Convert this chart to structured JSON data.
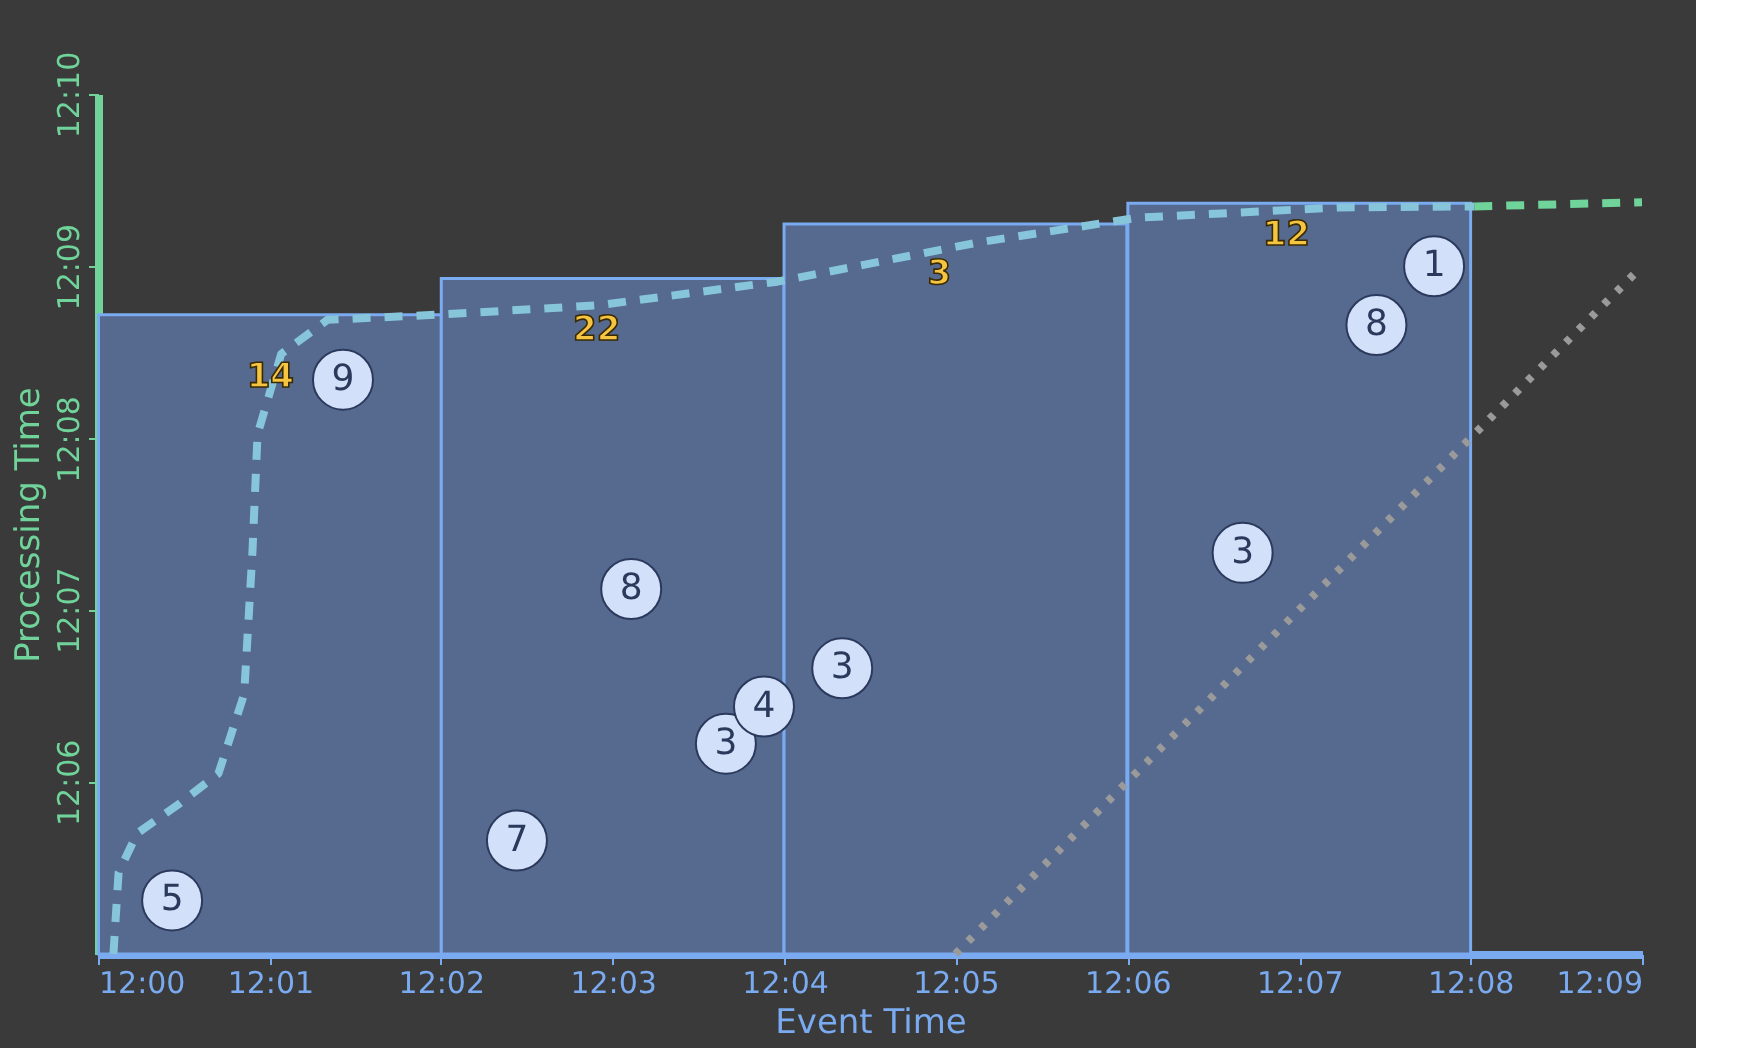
{
  "chart_data": {
    "type": "bar",
    "xlabel": "Event Time",
    "ylabel": "Processing Time",
    "xlim": [
      12,
      12.15
    ],
    "ylim": [
      12.0833,
      12.1667
    ],
    "xticks": [
      {
        "value": 12,
        "label": "12:00"
      },
      {
        "value": 12.0167,
        "label": "12:01"
      },
      {
        "value": 12.0333,
        "label": "12:02"
      },
      {
        "value": 12.05,
        "label": "12:03"
      },
      {
        "value": 12.0667,
        "label": "12:04"
      },
      {
        "value": 12.0833,
        "label": "12:05"
      },
      {
        "value": 12.1,
        "label": "12:06"
      },
      {
        "value": 12.1167,
        "label": "12:07"
      },
      {
        "value": 12.1333,
        "label": "12:08"
      },
      {
        "value": 12.15,
        "label": "12:09"
      }
    ],
    "yticks": [
      {
        "value": 12.1,
        "label": "12:06"
      },
      {
        "value": 12.1167,
        "label": "12:07"
      },
      {
        "value": 12.1333,
        "label": "12:08"
      },
      {
        "value": 12.15,
        "label": "12:09"
      },
      {
        "value": 12.1667,
        "label": "12:10"
      }
    ],
    "grid": false,
    "series": [
      {
        "x": [
          12.0167,
          12.05,
          12.0833,
          12.1167
        ],
        "base": [
          12.0833,
          12.0833,
          12.0833,
          12.0833
        ],
        "values": [
          0.062,
          0.0655,
          0.0708,
          0.0728
        ],
        "color": "#56698f"
      },
      {
        "type": "line",
        "line_style": "dashed",
        "color": "#86c5da",
        "x": [
          12.0015,
          12.002,
          12.0038,
          12.0078,
          12.0117,
          12.0142,
          12.015,
          12.0155,
          12.0178,
          12.0223,
          12.033,
          12.0485,
          12.066,
          12.0855,
          12.101,
          12.1205,
          12.1337
        ],
        "values": [
          12.0833,
          12.0912,
          12.095,
          12.0978,
          12.1008,
          12.1085,
          12.1222,
          12.1337,
          12.1415,
          12.1448,
          12.1453,
          12.1462,
          12.1485,
          12.1523,
          12.1547,
          12.1557,
          12.1558
        ]
      },
      {
        "type": "line",
        "line_style": "dashed",
        "color": "#6fd39a",
        "x": [
          12.1337,
          12.15
        ],
        "values": [
          12.1558,
          12.1562
        ]
      },
      {
        "type": "line",
        "line_style": "dotted",
        "color": "#9a9a9a",
        "x": [
          12.0833,
          12.15
        ],
        "values": [
          12.0833,
          12.15
        ]
      },
      {
        "type": "scatter",
        "marker": "circle",
        "color": "#d3e0fa",
        "x": [
          12.0072,
          12.0238,
          12.0407,
          12.0518,
          12.061,
          12.0647,
          12.0723,
          12.1112,
          12.1242,
          12.1298
        ],
        "values": [
          12.0885,
          12.139,
          12.0943,
          12.1187,
          12.1037,
          12.1073,
          12.111,
          12.1222,
          12.1443,
          12.15
        ]
      }
    ],
    "annotations": [
      {
        "text": "5",
        "x": 12.0072,
        "y": 12.0885
      },
      {
        "text": "9",
        "x": 12.0238,
        "y": 12.139
      },
      {
        "text": "7",
        "x": 12.0407,
        "y": 12.0943
      },
      {
        "text": "8",
        "x": 12.0518,
        "y": 12.1187
      },
      {
        "text": "3",
        "x": 12.061,
        "y": 12.1037
      },
      {
        "text": "4",
        "x": 12.0647,
        "y": 12.1073
      },
      {
        "text": "3",
        "x": 12.0723,
        "y": 12.111
      },
      {
        "text": "3",
        "x": 12.1112,
        "y": 12.1222
      },
      {
        "text": "8",
        "x": 12.1242,
        "y": 12.1443
      },
      {
        "text": "1",
        "x": 12.1298,
        "y": 12.15
      },
      {
        "text": "14",
        "x": 12.0183,
        "y": 12.1418
      },
      {
        "text": "22",
        "x": 12.05,
        "y": 12.1463
      },
      {
        "text": "3",
        "x": 12.0833,
        "y": 12.1518
      },
      {
        "text": "12",
        "x": 12.117,
        "y": 12.1555
      }
    ]
  }
}
